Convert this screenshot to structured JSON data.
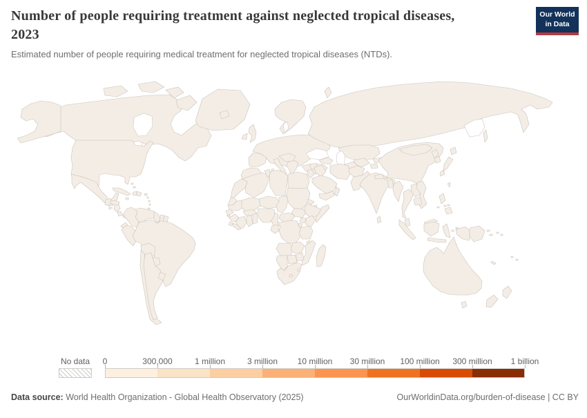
{
  "header": {
    "title": "Number of people requiring treatment against neglected tropical diseases, 2023",
    "subtitle": "Estimated number of people requiring medical treatment for neglected tropical diseases (NTDs)."
  },
  "logo": {
    "line1": "Our World",
    "line2": "in Data",
    "bg_color": "#12325a",
    "accent_color": "#b73a41"
  },
  "legend": {
    "no_data_label": "No data",
    "tick_labels": [
      "0",
      "300,000",
      "1 million",
      "3 million",
      "10 million",
      "30 million",
      "100 million",
      "300 million",
      "1 billion"
    ]
  },
  "map": {
    "palette": {
      "w": "#ffffff",
      "1": "#fdf0e1",
      "2": "#fbe3c6",
      "3": "#fccfa2",
      "4": "#fbb077",
      "5": "#fa9450",
      "6": "#ef7222",
      "7": "#d74b06",
      "8": "#882d04"
    },
    "no_data_key": "nd",
    "countries": {
      "canada": "1",
      "usa": "1",
      "greenland": "nd",
      "iceland": "1",
      "mexico": "1",
      "guatemala": "4",
      "honduras": "4",
      "el-salvador": "4",
      "nicaragua": "3",
      "costa-rica": "1",
      "panama": "2",
      "cuba": "1",
      "jamaica": "2",
      "haiti": "5",
      "dominican-republic": "4",
      "puerto-rico": "w",
      "bahamas": "1",
      "lesser-antilles": "2",
      "colombia": "5",
      "venezuela": "4",
      "guyana": "1",
      "suriname": "2",
      "french-guiana": "nd",
      "ecuador": "4",
      "peru": "2",
      "brazil": "5",
      "bolivia": "2",
      "paraguay": "3",
      "chile": "1",
      "argentina": "1",
      "uruguay": "1",
      "uk": "1",
      "ireland": "1",
      "scandinavia": "1",
      "europe-mainland": "1",
      "iberia": "1",
      "france": "1",
      "italy": "w",
      "balkans-greece": "w",
      "alps-pannonia": "w",
      "turkey": "w",
      "novaya-zemlya": "1",
      "russia": "1",
      "kazakhstan": "1",
      "caucasus": "1",
      "uzbekistan": "2",
      "turkmenistan": "2",
      "kyrgyzstan": "2",
      "tajikistan": "3",
      "morocco": "1",
      "western-sahara": "nd",
      "algeria": "1",
      "tunisia": "1",
      "libya": "1",
      "egypt": "3",
      "mauritania": "2",
      "senegal": "4",
      "guinea-bissau": "4",
      "mali": "4",
      "guinea": "5",
      "sierra-leone": "4",
      "liberia": "5",
      "cote-divoire": "5",
      "ghana": "5",
      "togo-benin": "5",
      "burkina-faso": "5",
      "niger": "4",
      "nigeria": "6",
      "chad": "4",
      "cameroon": "5",
      "central-african-republic": "4",
      "sudan": "5",
      "eritrea": "4",
      "djibouti": "3",
      "ethiopia": "6",
      "somalia": "4",
      "south-sudan": "5",
      "uganda": "5",
      "kenya": "4",
      "rwanda-burundi": "6",
      "dr-congo": "6",
      "congo-gabon": "2",
      "tanzania": "6",
      "angola": "4",
      "zambia": "4",
      "malawi": "5",
      "mozambique": "5",
      "zimbabwe": "4",
      "botswana": "2",
      "namibia": "2",
      "south-africa": "5",
      "lesotho": "2",
      "eswatini": "4",
      "madagascar": "5",
      "syria": "w",
      "levant": "w",
      "iraq": "3",
      "iran": "w",
      "saudi-arabia": "w",
      "yemen": "5",
      "oman": "2",
      "afghanistan": "5",
      "pakistan": "5",
      "india": "8",
      "nepal": "5",
      "bhutan": "4",
      "bangladesh": "7",
      "sri-lanka": "w",
      "myanmar": "5",
      "china": "1",
      "mongolia": "1",
      "north-korea": "4",
      "south-korea": "w",
      "japan": "1",
      "taiwan": "w",
      "hainan": "1",
      "thailand": "1",
      "laos": "3",
      "vietnam": "2",
      "cambodia": "3",
      "malaysia": "4",
      "indonesia": "6",
      "timor-leste": "4",
      "papua-new-guinea": "4",
      "philippines": "6",
      "solomon-islands": "5",
      "vanuatu": "2",
      "fiji": "2",
      "new-caledonia": "2",
      "australia": "1",
      "new-zealand": "1"
    }
  },
  "footer": {
    "source_label": "Data source:",
    "source_text": " World Health Organization - Global Health Observatory (2025)",
    "link_text": "OurWorldinData.org/burden-of-disease | CC BY"
  }
}
